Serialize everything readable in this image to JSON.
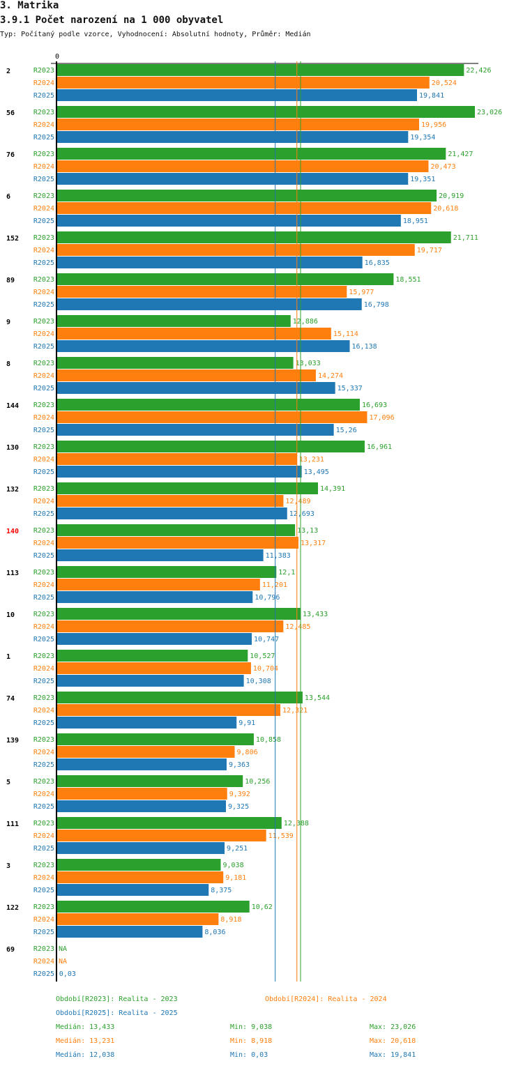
{
  "header": {
    "section": "3. Matrika",
    "title": "3.9.1 Počet narození na 1 000 obyvatel",
    "subtitle": "Typ: Počítaný podle vzorce, Vyhodnocení: Absolutní hodnoty, Průměr: Medián"
  },
  "chart_data": {
    "type": "bar",
    "orientation": "horizontal",
    "title": "3.9.1 Počet narození na 1 000 obyvatel",
    "xlim": [
      0,
      23.026
    ],
    "zero_label": "0",
    "series": [
      {
        "name": "R2023",
        "color": "#2ca02c"
      },
      {
        "name": "R2024",
        "color": "#ff7f0e"
      },
      {
        "name": "R2025",
        "color": "#1f77b4"
      }
    ],
    "highlight_color": "#ff0000",
    "groups": [
      {
        "label": "2",
        "values": [
          22.426,
          20.524,
          19.841
        ]
      },
      {
        "label": "56",
        "values": [
          23.026,
          19.956,
          19.354
        ]
      },
      {
        "label": "76",
        "values": [
          21.427,
          20.473,
          19.351
        ]
      },
      {
        "label": "6",
        "values": [
          20.919,
          20.618,
          18.951
        ]
      },
      {
        "label": "152",
        "values": [
          21.711,
          19.717,
          16.835
        ]
      },
      {
        "label": "89",
        "values": [
          18.551,
          15.977,
          16.798
        ]
      },
      {
        "label": "9",
        "values": [
          12.886,
          15.114,
          16.138
        ]
      },
      {
        "label": "8",
        "values": [
          13.033,
          14.274,
          15.337
        ]
      },
      {
        "label": "144",
        "values": [
          16.693,
          17.096,
          15.26
        ]
      },
      {
        "label": "130",
        "values": [
          16.961,
          13.231,
          13.495
        ]
      },
      {
        "label": "132",
        "values": [
          14.391,
          12.489,
          12.693
        ]
      },
      {
        "label": "140",
        "highlight": true,
        "values": [
          13.13,
          13.317,
          11.383
        ]
      },
      {
        "label": "113",
        "values": [
          12.1,
          11.201,
          10.796
        ]
      },
      {
        "label": "10",
        "values": [
          13.433,
          12.485,
          10.747
        ]
      },
      {
        "label": "1",
        "values": [
          10.527,
          10.704,
          10.308
        ]
      },
      {
        "label": "74",
        "values": [
          13.544,
          12.321,
          9.91
        ]
      },
      {
        "label": "139",
        "values": [
          10.858,
          9.806,
          9.363
        ]
      },
      {
        "label": "5",
        "values": [
          10.256,
          9.392,
          9.325
        ]
      },
      {
        "label": "111",
        "values": [
          12.388,
          11.539,
          9.251
        ]
      },
      {
        "label": "3",
        "values": [
          9.038,
          9.181,
          8.375
        ]
      },
      {
        "label": "122",
        "values": [
          10.62,
          8.918,
          8.036
        ]
      },
      {
        "label": "69",
        "values": [
          null,
          null,
          0.03
        ]
      }
    ],
    "na_label": "NA",
    "medians": [
      13.433,
      13.231,
      12.038
    ]
  },
  "legend": {
    "periods": [
      "Období[R2023]: Realita - 2023",
      "Období[R2024]: Realita - 2024",
      "Období[R2025]: Realita - 2025"
    ],
    "stats": [
      {
        "median": "Medián: 13,433",
        "min": "Min: 9,038",
        "max": "Max: 23,026"
      },
      {
        "median": "Medián: 13,231",
        "min": "Min: 8,918",
        "max": "Max: 20,618"
      },
      {
        "median": "Medián: 12,038",
        "min": "Min: 0,03",
        "max": "Max: 19,841"
      }
    ]
  }
}
